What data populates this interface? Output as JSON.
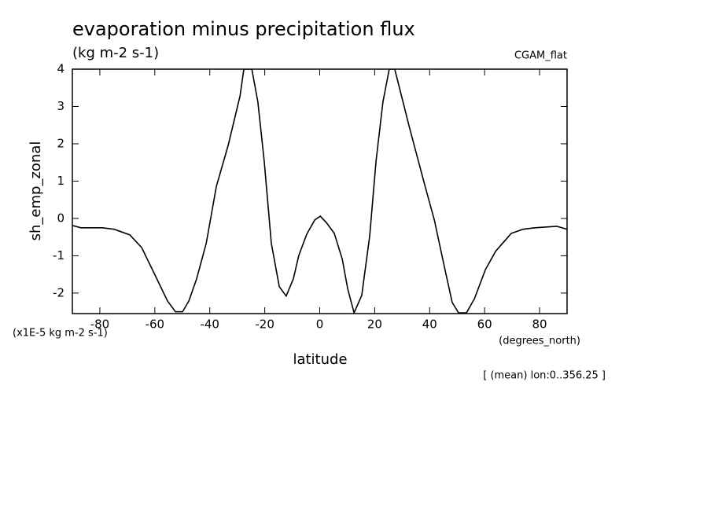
{
  "chart_data": {
    "type": "line",
    "title": "evaporation minus precipitation flux",
    "subtitle": "(kg m-2 s-1)",
    "dataset_label": "CGAM_flat",
    "y_label": "sh_emp_zonal",
    "y_unit_label": "(x1E-5 kg m-2 s-1)",
    "x_label": "latitude",
    "x_unit_label": "(degrees_north)",
    "note": "[ (mean) lon:0..356.25 ]",
    "color": "#000000",
    "x": [
      -90,
      -86.9,
      -79.1,
      -74.8,
      -69.1,
      -64.8,
      -59.9,
      -55.4,
      -52.5,
      -49.9,
      -47.6,
      -44.8,
      -41.3,
      -37.6,
      -33.3,
      -29,
      -27.6,
      -24.7,
      -22.5,
      -20.2,
      -17.6,
      -14.7,
      -12.2,
      -9.6,
      -7.6,
      -4.7,
      -1.8,
      0.2,
      2.4,
      5.3,
      8.2,
      10.2,
      12.5,
      15.3,
      18.2,
      20.5,
      23,
      25.3,
      27.3,
      29.6,
      32.5,
      38.2,
      41.7,
      45.4,
      48.2,
      50.5,
      53.4,
      56.3,
      60.3,
      64,
      69.7,
      74,
      78.3,
      86.3,
      90
    ],
    "values": [
      -0.19,
      -0.25,
      -0.25,
      -0.29,
      -0.44,
      -0.78,
      -1.52,
      -2.21,
      -2.5,
      -2.5,
      -2.21,
      -1.62,
      -0.67,
      0.86,
      1.96,
      3.28,
      4,
      4,
      3.12,
      1.54,
      -0.67,
      -1.83,
      -2.08,
      -1.62,
      -0.99,
      -0.42,
      -0.04,
      0.06,
      -0.11,
      -0.4,
      -1.09,
      -1.89,
      -2.53,
      -2.06,
      -0.46,
      1.54,
      3.12,
      4,
      4,
      3.33,
      2.48,
      0.9,
      -0.04,
      -1.31,
      -2.25,
      -2.53,
      -2.53,
      -2.15,
      -1.37,
      -0.88,
      -0.4,
      -0.29,
      -0.25,
      -0.21,
      -0.29
    ],
    "xlim": [
      -90,
      90
    ],
    "xticks": [
      -80,
      -60,
      -40,
      -20,
      0,
      20,
      40,
      60,
      80
    ],
    "ylim": [
      -2.55,
      4
    ],
    "yticks": [
      -2,
      -1,
      0,
      1,
      2,
      3,
      4
    ]
  }
}
